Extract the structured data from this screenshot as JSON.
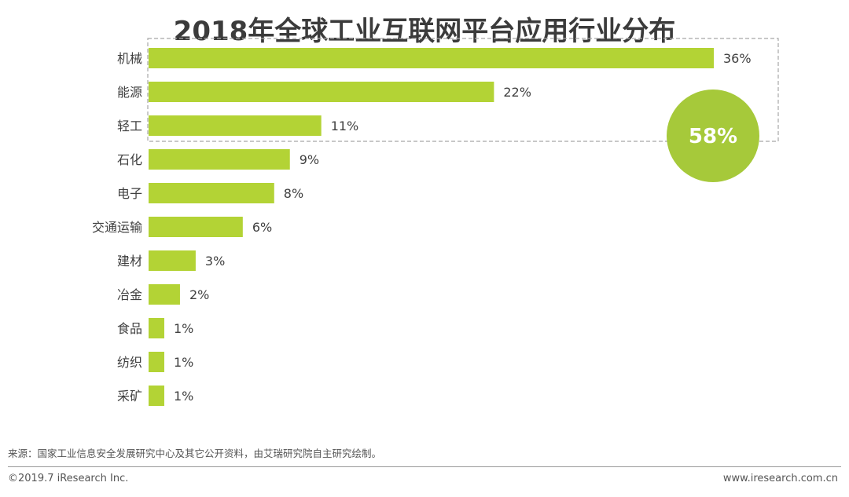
{
  "title": "2018年全球工业互联网平台应用行业分布",
  "chart_data": {
    "type": "bar",
    "orientation": "horizontal",
    "title": "2018年全球工业互联网平台应用行业分布",
    "categories": [
      "机械",
      "能源",
      "轻工",
      "石化",
      "电子",
      "交通运输",
      "建材",
      "冶金",
      "食品",
      "纺织",
      "采矿"
    ],
    "values": [
      36,
      22,
      11,
      9,
      8,
      6,
      3,
      2,
      1,
      1,
      1
    ],
    "value_labels": [
      "36%",
      "22%",
      "11%",
      "9%",
      "8%",
      "6%",
      "3%",
      "2%",
      "1%",
      "1%",
      "1%"
    ],
    "unit": "%",
    "xlim": [
      0,
      36
    ],
    "grid": false,
    "bar_color": "#b3d335",
    "highlight": {
      "categories": [
        "机械",
        "能源"
      ],
      "label": "58%",
      "color": "#a6c93a"
    }
  },
  "source_text": "来源：国家工业信息安全发展研究中心及其它公开资料，由艾瑞研究院自主研究绘制。",
  "copyright": "©2019.7 iResearch Inc.",
  "website": "www.iresearch.com.cn"
}
